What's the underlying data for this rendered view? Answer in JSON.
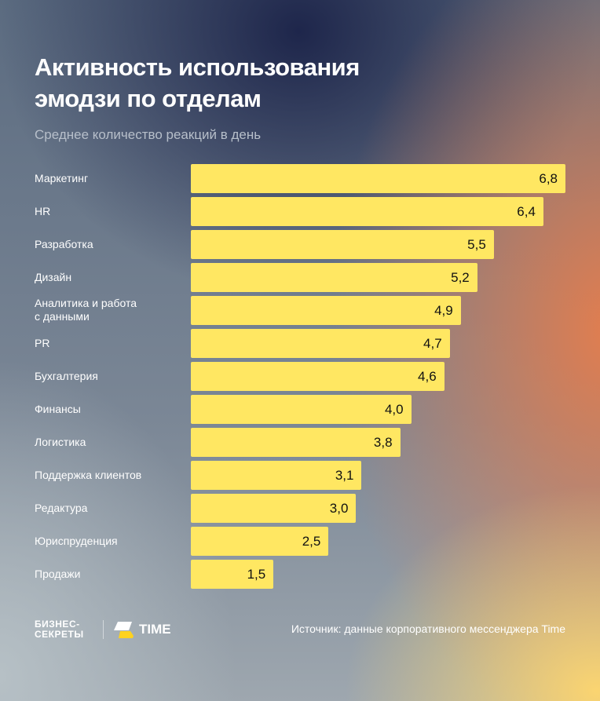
{
  "chart_data": {
    "type": "bar",
    "orientation": "horizontal",
    "title": "Активность использования эмодзи по отделам",
    "subtitle": "Среднее количество реакций в день",
    "categories": [
      "Маркетинг",
      "HR",
      "Разработка",
      "Дизайн",
      "Аналитика и работа с данными",
      "PR",
      "Бухгалтерия",
      "Финансы",
      "Логистика",
      "Поддержка клиентов",
      "Редактура",
      "Юриспруденция",
      "Продажи"
    ],
    "values": [
      6.8,
      6.4,
      5.5,
      5.2,
      4.9,
      4.7,
      4.6,
      4.0,
      3.8,
      3.1,
      3.0,
      2.5,
      1.5
    ],
    "value_labels": [
      "6,8",
      "6,4",
      "5,5",
      "5,2",
      "4,9",
      "4,7",
      "4,6",
      "4,0",
      "3,8",
      "3,1",
      "3,0",
      "2,5",
      "1,5"
    ],
    "xlim": [
      0,
      6.8
    ],
    "grid": false,
    "bar_color": "#ffe762"
  },
  "title_lines": [
    "Активность использования",
    "эмодзи по отделам"
  ],
  "label_lines": {
    "4": [
      "Аналитика и работа",
      "с данными"
    ]
  },
  "footer": {
    "brand_lines": [
      "БИЗНЕС-",
      "СЕКРЕТЫ"
    ],
    "partner": "TIME",
    "source": "Источник: данные корпоративного мессенджера Time"
  }
}
